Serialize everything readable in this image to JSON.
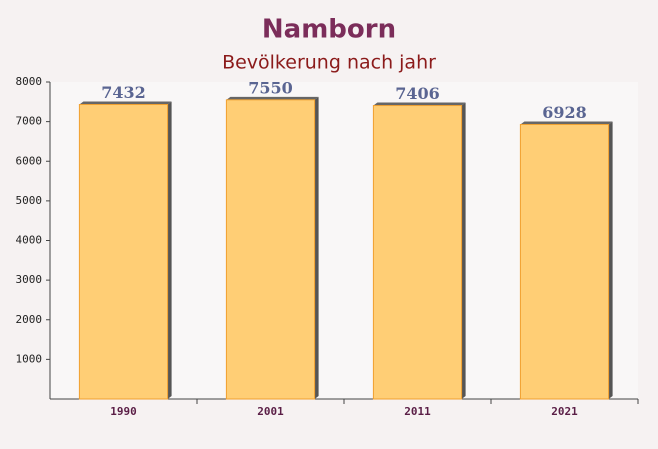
{
  "chart_data": {
    "type": "bar",
    "title": "Namborn",
    "subtitle": "Bevölkerung nach jahr",
    "categories": [
      "1990",
      "2001",
      "2011",
      "2021"
    ],
    "values": [
      7432,
      7550,
      7406,
      6928
    ],
    "color": "#ffc966",
    "ylim": [
      0,
      8000
    ],
    "yticks": [
      1000,
      2000,
      3000,
      4000,
      5000,
      6000,
      7000,
      8000
    ],
    "grid": false
  }
}
